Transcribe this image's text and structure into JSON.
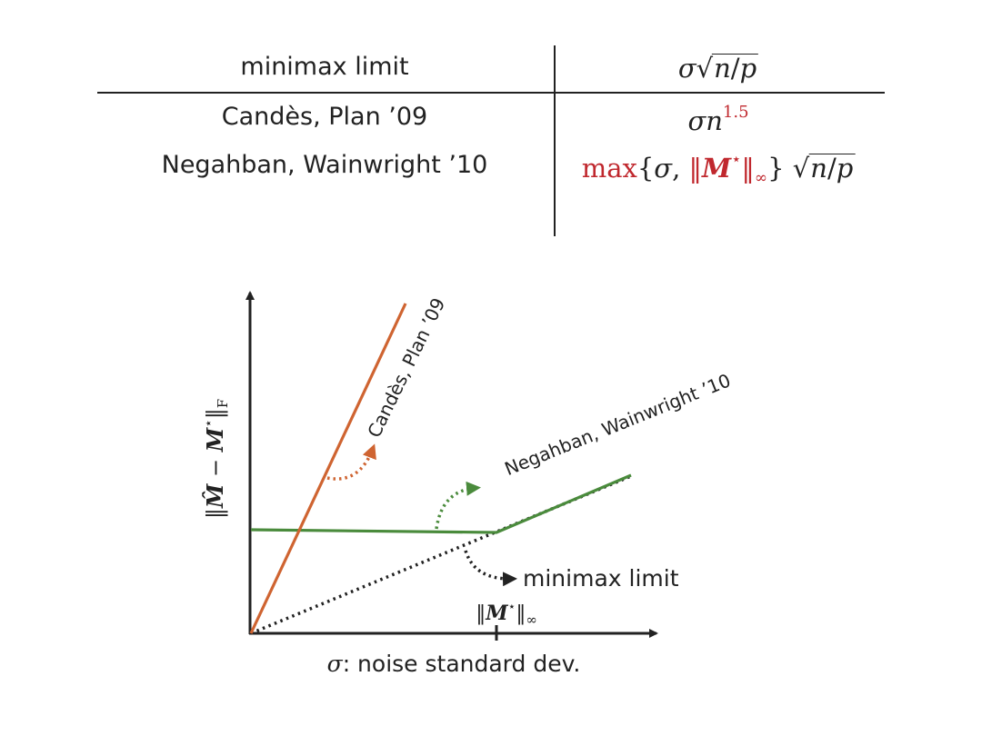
{
  "table": {
    "header": {
      "left": "minimax limit",
      "right": {
        "sigma": "σ",
        "n": "n",
        "slash": "/",
        "p": "p"
      }
    },
    "rows": [
      {
        "left": "Candès, Plan ’09",
        "right": {
          "sigma": "σ",
          "n": "n",
          "exp": "1.5"
        }
      },
      {
        "left": "Negahban, Wainwright ’10",
        "right": {
          "max": "max",
          "lbrace": "{",
          "sigma": "σ",
          "comma": ",",
          "norm_open": "‖",
          "M": "M",
          "star": "⋆",
          "norm_close": "‖",
          "inf": "∞",
          "rbrace": "}",
          "n": "n",
          "slash": "/",
          "p": "p"
        }
      }
    ]
  },
  "plot": {
    "y_axis_label": "‖M̂ − M⋆‖F",
    "y_axis_label_parts": {
      "open": "‖",
      "Mhat": "M̂",
      "minus": " − ",
      "M": "M",
      "star": "⋆",
      "close": "‖",
      "sub": "F"
    },
    "x_axis_label": {
      "sigma": "σ",
      "rest": ": noise standard dev."
    },
    "x_tick_label": {
      "open": "‖",
      "M": "M",
      "star": "⋆",
      "close": "‖",
      "sub": "∞"
    },
    "curves": [
      {
        "label": "Candès, Plan ’09",
        "color": "#cf6431"
      },
      {
        "label": "Negahban, Wainwright ’10",
        "color": "#4a8b3c"
      },
      {
        "label": "minimax limit",
        "color": "#222222"
      }
    ],
    "axis_color": "#222222"
  }
}
